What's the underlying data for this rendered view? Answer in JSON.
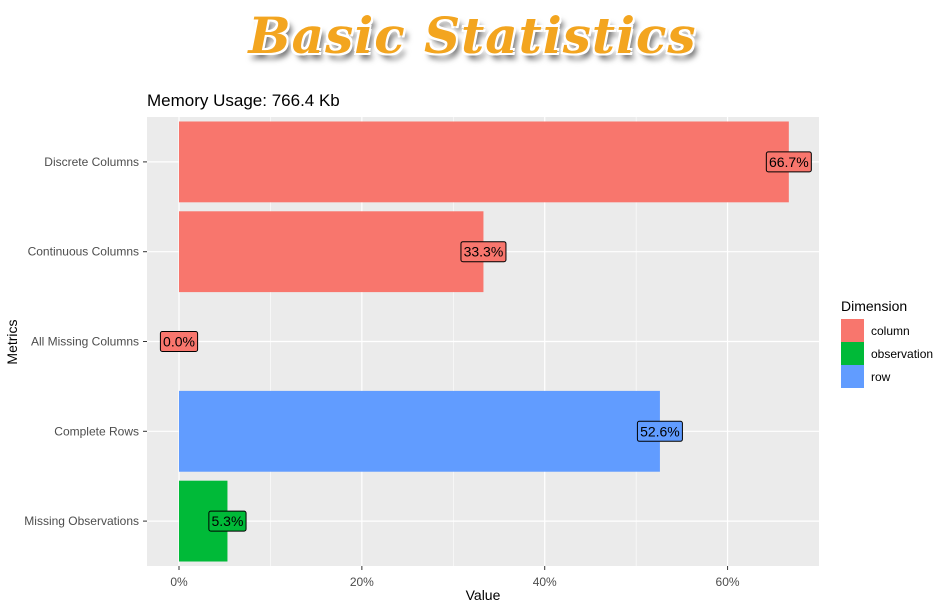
{
  "banner": {
    "title": "Basic Statistics",
    "color": "#f3a51f"
  },
  "chart_data": {
    "type": "bar",
    "orientation": "horizontal",
    "title": "Memory Usage: 766.4 Kb",
    "xlabel": "Value",
    "ylabel": "Metrics",
    "xlim": [
      -0.035,
      0.7
    ],
    "x_ticks": [
      0,
      0.2,
      0.4,
      0.6
    ],
    "x_tick_labels": [
      "0%",
      "20%",
      "40%",
      "60%"
    ],
    "grid": true,
    "panel_background": "#ebebeb",
    "legend": {
      "title": "Dimension",
      "placement": "right",
      "entries": [
        {
          "name": "column",
          "color": "#f8766d"
        },
        {
          "name": "observation",
          "color": "#00ba38"
        },
        {
          "name": "row",
          "color": "#619cff"
        }
      ]
    },
    "categories": [
      "Discrete Columns",
      "Continuous Columns",
      "All Missing Columns",
      "Complete Rows",
      "Missing Observations"
    ],
    "values": [
      0.667,
      0.333,
      0.0,
      0.526,
      0.053
    ],
    "dimensions": [
      "column",
      "column",
      "column",
      "row",
      "observation"
    ],
    "labels": [
      "66.7%",
      "33.3%",
      "0.0%",
      "52.6%",
      "5.3%"
    ]
  }
}
